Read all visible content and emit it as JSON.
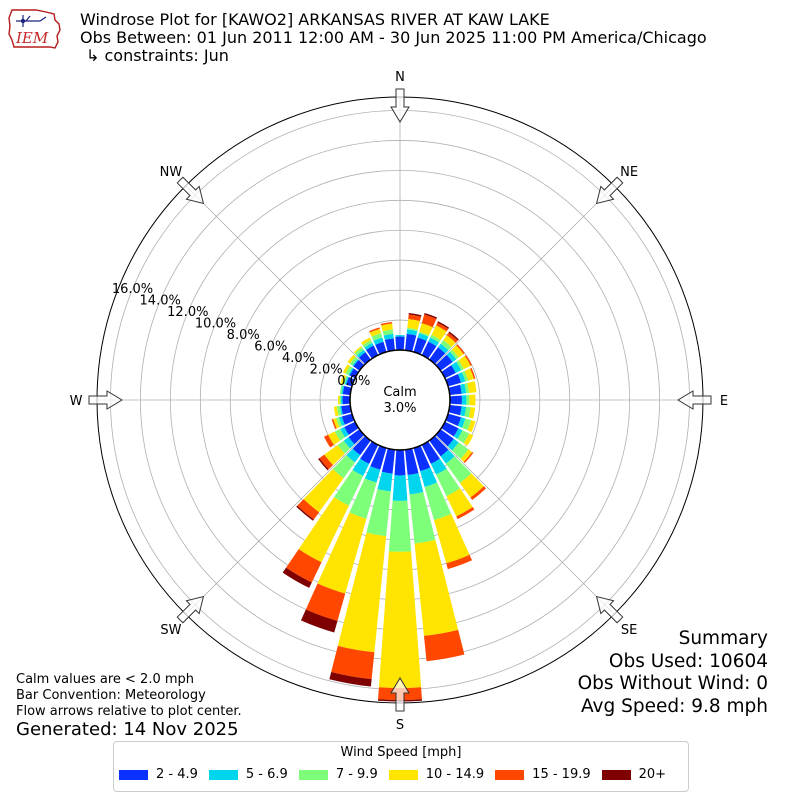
{
  "header": {
    "title": "Windrose Plot for [KAWO2] ARKANSAS RIVER  AT KAW LAKE",
    "period": "Obs Between: 01 Jun 2011 12:00 AM - 30 Jun 2025 11:00 PM America/Chicago",
    "constraints": "↳ constraints: Jun",
    "logo_text": "IEM"
  },
  "calm": {
    "label": "Calm",
    "value": "3.0%"
  },
  "footer": {
    "note1": "Calm values are < 2.0 mph",
    "note2": "Bar Convention: Meteorology",
    "note3": "Flow arrows relative to plot center.",
    "generated": "Generated: 14 Nov 2025"
  },
  "summary": {
    "title": "Summary",
    "obs_used": "Obs Used: 10604",
    "obs_without_wind": "Obs Without Wind: 0",
    "avg_speed": "Avg Speed: 9.8 mph"
  },
  "legend": {
    "title": "Wind Speed [mph]",
    "items": [
      {
        "label": "2 - 4.9",
        "color": "#0a31ff"
      },
      {
        "label": "5 - 6.9",
        "color": "#00d5ee"
      },
      {
        "label": "7 - 9.9",
        "color": "#7dff7a"
      },
      {
        "label": "10 - 14.9",
        "color": "#ffe400"
      },
      {
        "label": "15 - 19.9",
        "color": "#ff4700"
      },
      {
        "label": "20+",
        "color": "#7f0000"
      }
    ]
  },
  "chart_data": {
    "type": "windrose",
    "directions": [
      "N",
      "NE",
      "E",
      "SE",
      "S",
      "SW",
      "W",
      "NW"
    ],
    "radial_ticks": [
      "0.0%",
      "2.0%",
      "4.0%",
      "6.0%",
      "8.0%",
      "10.0%",
      "12.0%",
      "14.0%",
      "16.0%"
    ],
    "rlim": [
      0,
      16.9
    ],
    "calm_percent": 3.0,
    "bin_labels": [
      "2 - 4.9",
      "5 - 6.9",
      "7 - 9.9",
      "10 - 14.9",
      "15 - 19.9",
      "20+"
    ],
    "direction_bins_deg": [
      0,
      10,
      20,
      30,
      40,
      50,
      60,
      70,
      80,
      90,
      100,
      110,
      120,
      130,
      140,
      150,
      160,
      170,
      180,
      190,
      200,
      210,
      220,
      230,
      240,
      250,
      260,
      270,
      280,
      290,
      300,
      310,
      320,
      330,
      340,
      350
    ],
    "cumulative_percent": [
      [
        0.9,
        1.0,
        1.0,
        1.0,
        1.0,
        1.0
      ],
      [
        1.1,
        1.4,
        1.5,
        2.1,
        2.4,
        2.5
      ],
      [
        1.0,
        1.3,
        1.4,
        2.0,
        2.6,
        2.7
      ],
      [
        1.0,
        1.3,
        1.5,
        2.2,
        2.4,
        2.5
      ],
      [
        1.0,
        1.3,
        1.6,
        2.0,
        2.2,
        2.3
      ],
      [
        1.0,
        1.3,
        1.5,
        1.9,
        2.0,
        2.0
      ],
      [
        0.8,
        1.2,
        1.4,
        1.9,
        2.0,
        2.0
      ],
      [
        0.9,
        1.2,
        1.4,
        1.8,
        1.9,
        1.9
      ],
      [
        0.8,
        1.1,
        1.3,
        1.8,
        1.8,
        1.8
      ],
      [
        0.8,
        1.1,
        1.3,
        1.7,
        1.7,
        1.7
      ],
      [
        0.8,
        1.1,
        1.4,
        1.7,
        1.7,
        1.7
      ],
      [
        0.9,
        1.2,
        1.6,
        1.9,
        1.9,
        1.9
      ],
      [
        1.0,
        1.3,
        1.8,
        2.1,
        2.1,
        2.1
      ],
      [
        1.1,
        1.5,
        2.3,
        2.6,
        2.7,
        2.7
      ],
      [
        1.3,
        1.9,
        3.5,
        4.7,
        4.9,
        4.9
      ],
      [
        1.4,
        2.2,
        3.8,
        5.3,
        5.5,
        5.5
      ],
      [
        1.6,
        2.7,
        5.0,
        8.0,
        8.4,
        8.4
      ],
      [
        1.7,
        3.0,
        6.3,
        12.5,
        14.2,
        14.2
      ],
      [
        1.7,
        3.4,
        6.8,
        15.9,
        16.7,
        16.8
      ],
      [
        1.6,
        2.8,
        5.8,
        13.6,
        15.4,
        15.9
      ],
      [
        1.5,
        2.4,
        4.9,
        10.1,
        12.0,
        12.8
      ],
      [
        1.4,
        2.3,
        4.5,
        8.7,
        10.2,
        10.6
      ],
      [
        1.2,
        1.8,
        3.1,
        5.9,
        6.5,
        6.6
      ],
      [
        0.9,
        1.3,
        1.8,
        2.9,
        3.3,
        3.4
      ],
      [
        0.8,
        1.1,
        1.5,
        2.0,
        2.3,
        2.3
      ],
      [
        0.7,
        0.9,
        1.1,
        1.3,
        1.4,
        1.4
      ],
      [
        0.6,
        0.7,
        0.9,
        1.1,
        1.1,
        1.1
      ],
      [
        0.5,
        0.6,
        0.7,
        0.8,
        0.8,
        0.8
      ],
      [
        0.5,
        0.6,
        0.7,
        0.7,
        0.7,
        0.7
      ],
      [
        0.4,
        0.5,
        0.6,
        0.8,
        0.8,
        0.8
      ],
      [
        0.4,
        0.5,
        0.7,
        0.9,
        0.9,
        0.9
      ],
      [
        0.5,
        0.6,
        0.8,
        1.0,
        1.0,
        1.0
      ],
      [
        0.6,
        0.8,
        1.0,
        1.1,
        1.1,
        1.1
      ],
      [
        0.7,
        0.9,
        1.1,
        1.3,
        1.3,
        1.3
      ],
      [
        0.7,
        1.0,
        1.3,
        1.6,
        1.7,
        1.7
      ],
      [
        0.8,
        1.1,
        1.4,
        1.8,
        1.9,
        1.9
      ]
    ]
  }
}
